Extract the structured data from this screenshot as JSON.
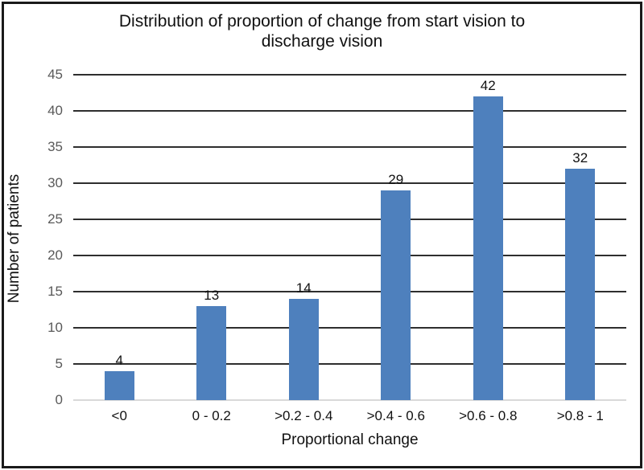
{
  "chart_data": {
    "type": "bar",
    "title": "Distribution of proportion of change from start vision to discharge vision",
    "categories": [
      "<0",
      "0 - 0.2",
      ">0.2 - 0.4",
      ">0.4 - 0.6",
      ">0.6 - 0.8",
      ">0.8 - 1"
    ],
    "values": [
      4,
      13,
      14,
      29,
      42,
      32
    ],
    "xlabel": "Proportional change",
    "ylabel": "Number of patients",
    "ylim": [
      0,
      45
    ],
    "ytick_step": 5,
    "yticks": [
      0,
      5,
      10,
      15,
      20,
      25,
      30,
      35,
      40,
      45
    ],
    "grid": true,
    "legend": "none",
    "colors": {
      "bar": "#4e80bd",
      "gridline": "#2e2e2e",
      "axis_line": "#d9d9d9",
      "tick_label": "#595959",
      "text": "#111111",
      "frame_border": "#1a1a1a",
      "background": "#ffffff"
    }
  }
}
